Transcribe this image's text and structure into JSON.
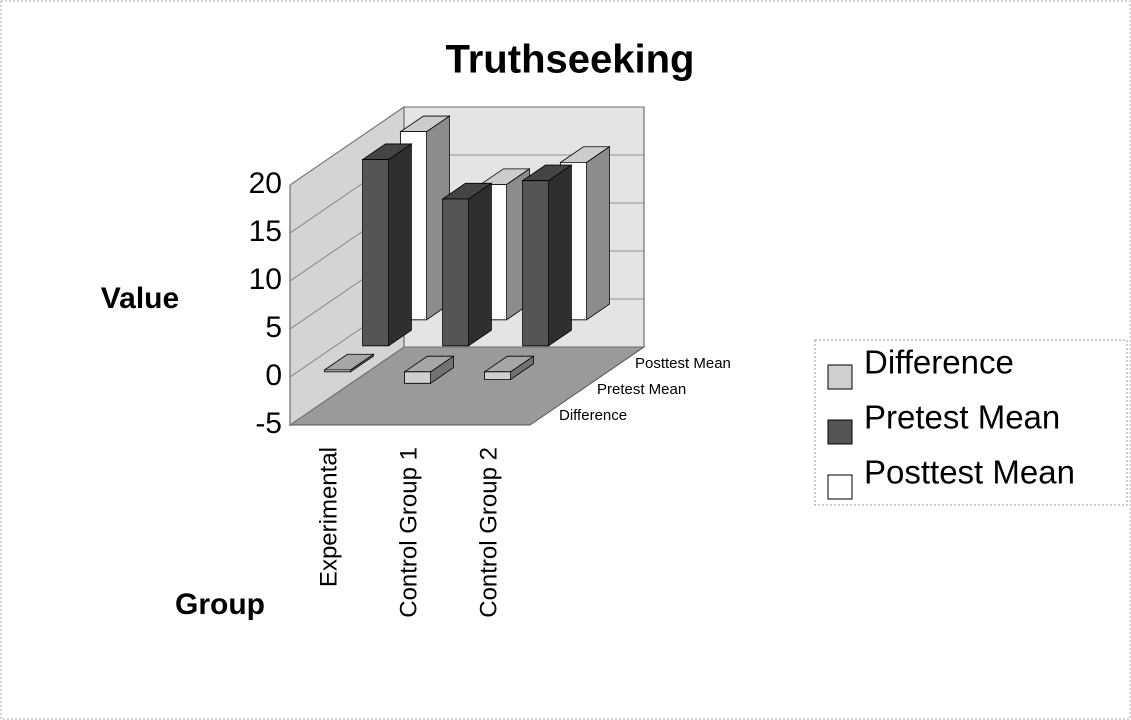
{
  "chart_data": {
    "type": "bar3d",
    "title": "Truthseeking",
    "y_label": "Value",
    "x_label": "Group",
    "categories": [
      "Experimental",
      "Control Group 1",
      "Control Group 2"
    ],
    "series": [
      {
        "name": "Difference",
        "color": "#cfcfcf",
        "values": [
          0.2,
          -1.2,
          -0.8
        ]
      },
      {
        "name": "Pretest Mean",
        "color": "#555555",
        "values": [
          19.4,
          15.3,
          17.2
        ]
      },
      {
        "name": "Posttest Mean",
        "color": "#ffffff",
        "values": [
          19.6,
          14.1,
          16.4
        ]
      }
    ],
    "ylim": [
      -5,
      20
    ],
    "yticks": [
      -5,
      0,
      5,
      10,
      15,
      20
    ],
    "grid": true,
    "legend": "right"
  }
}
